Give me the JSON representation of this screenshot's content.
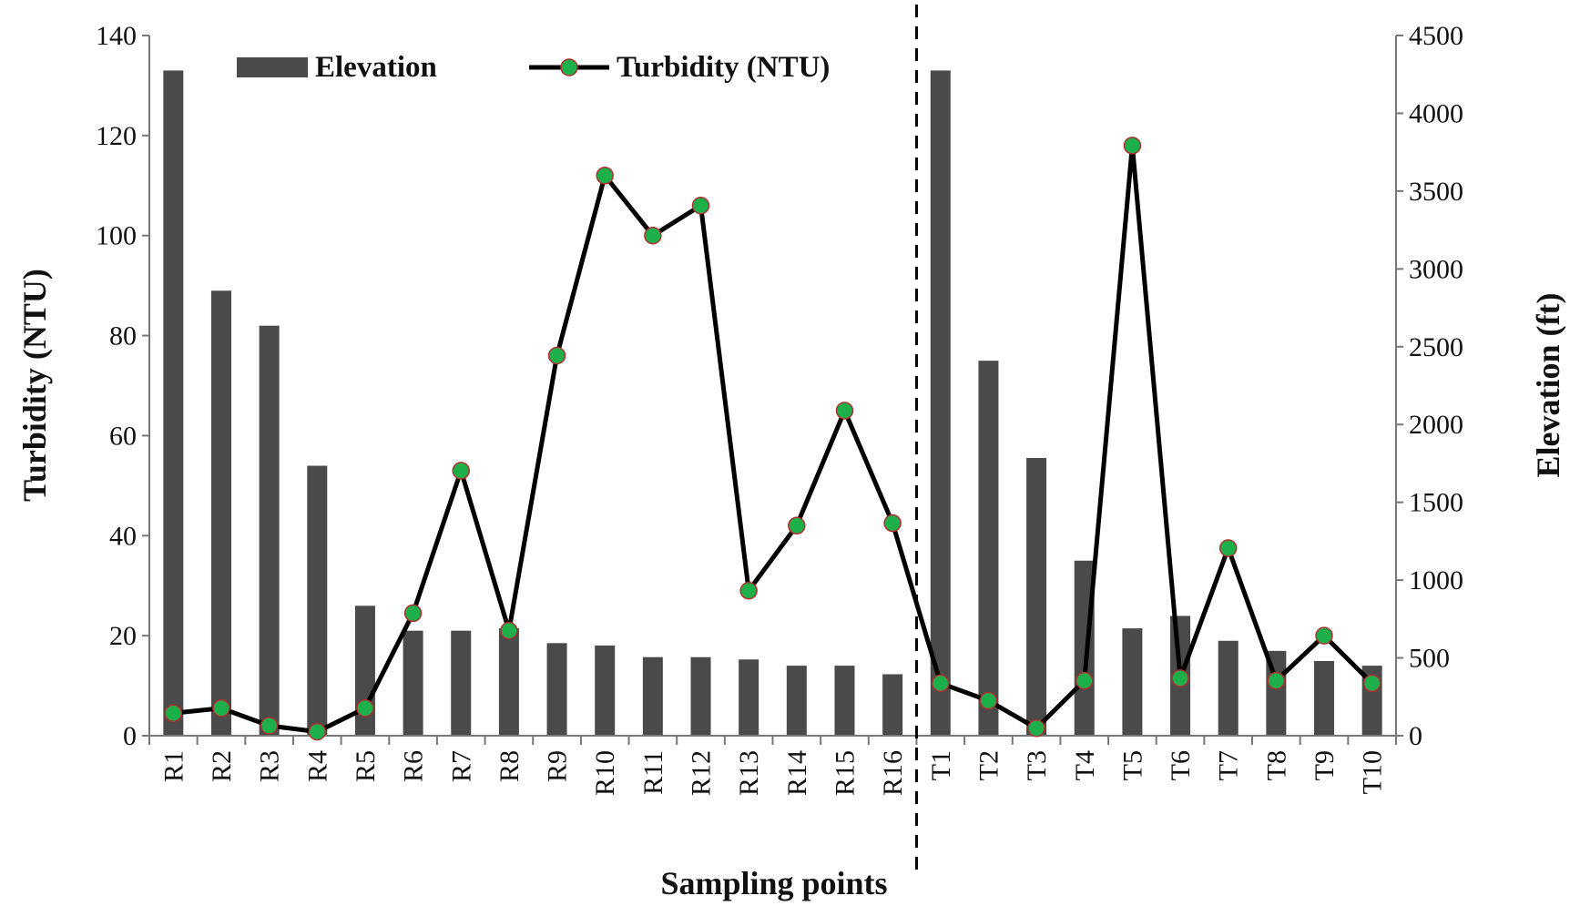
{
  "chart_data": {
    "type": "bar+line",
    "xlabel": "Sampling points",
    "ylabel_left": "Turbidity (NTU)",
    "ylabel_right": "Elevation (ft)",
    "ylim_left": [
      0,
      140
    ],
    "ylim_right": [
      0,
      4500
    ],
    "yticks_left": [
      "0",
      "20",
      "40",
      "60",
      "80",
      "100",
      "120",
      "140"
    ],
    "yticks_right": [
      "0",
      "500",
      "1000",
      "1500",
      "2000",
      "2500",
      "3000",
      "3500",
      "4000",
      "4500"
    ],
    "categories": [
      "R1",
      "R2",
      "R3",
      "R4",
      "R5",
      "R6",
      "R7",
      "R8",
      "R9",
      "R10",
      "R11",
      "R12",
      "R13",
      "R14",
      "R15",
      "R16",
      "T1",
      "T2",
      "T3",
      "T4",
      "T5",
      "T6",
      "T7",
      "T8",
      "T9",
      "T10"
    ],
    "series": [
      {
        "name": "Elevation",
        "type": "bar",
        "axis": "right",
        "color": "#4a4a4a",
        "values": [
          4275,
          2860,
          2635,
          1735,
          835,
          675,
          675,
          690,
          595,
          580,
          505,
          505,
          490,
          450,
          450,
          395,
          4275,
          2410,
          1785,
          1125,
          690,
          770,
          610,
          545,
          480,
          450
        ]
      },
      {
        "name": "Turbidity (NTU)",
        "type": "line",
        "axis": "left",
        "color": "#000000",
        "marker_color": "#1db04a",
        "marker_edge": "#b03030",
        "values": [
          4.5,
          5.5,
          2,
          0.8,
          5.5,
          24.5,
          53,
          21,
          76,
          112,
          100,
          106,
          29,
          42,
          65,
          42.5,
          10.5,
          7,
          1.5,
          11,
          118,
          11.5,
          37.5,
          11,
          20,
          10.5
        ]
      }
    ],
    "divider_after": "R16",
    "legend": "top"
  }
}
